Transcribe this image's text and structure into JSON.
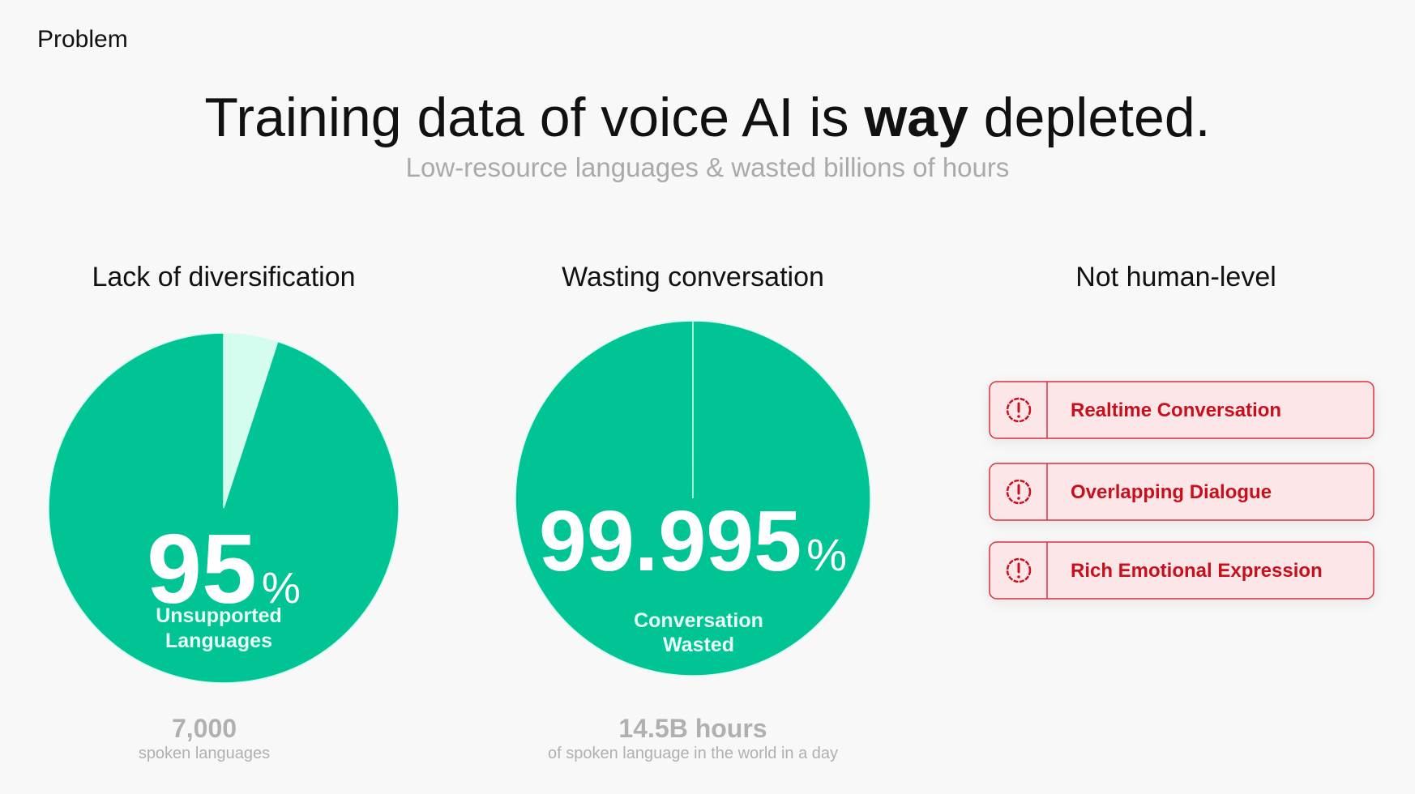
{
  "header": {
    "section": "Problem",
    "title": {
      "before": "Training data of voice AI is ",
      "emphasis": "way",
      "after": " depleted."
    },
    "subtitle": "Low-resource languages & wasted billions of hours"
  },
  "chart_data": [
    {
      "type": "pie",
      "title": "Lack of diversification",
      "values": [
        95
      ],
      "unit": "%",
      "label_lines": [
        "Unsupported",
        "Languages"
      ],
      "colors": [
        "#00c493",
        "#d4fdf0"
      ],
      "stat": "7,000",
      "stat_caption": "spoken languages"
    },
    {
      "type": "pie",
      "title": "Wasting conversation",
      "values": [
        99.995
      ],
      "unit": "%",
      "label_lines": [
        "Conversation",
        "Wasted"
      ],
      "colors": [
        "#00c493",
        "#d4fdf0"
      ],
      "stat": "14.5B hours",
      "stat_caption": "of spoken language in the world in a day"
    }
  ],
  "issues": {
    "title": "Not human-level",
    "items": [
      "Realtime Conversation",
      "Overlapping Dialogue",
      "Rich Emotional Expression"
    ]
  }
}
